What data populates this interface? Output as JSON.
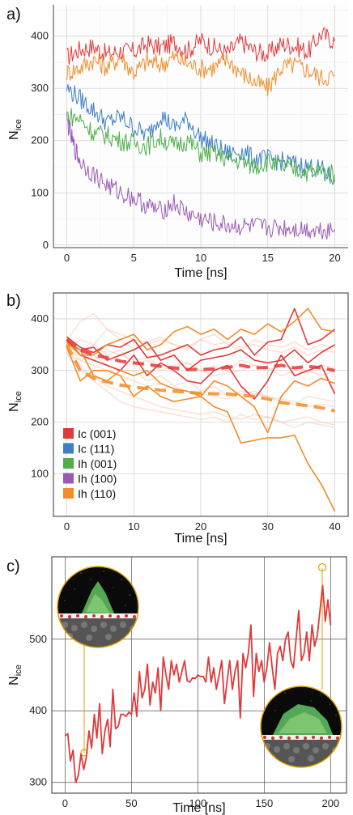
{
  "chart_data": [
    {
      "panel": "a)",
      "type": "line",
      "xlabel": "Time [ns]",
      "ylabel": "N",
      "ylabel_sub": "ice",
      "xlim": [
        -1,
        21
      ],
      "ylim": [
        -5,
        460
      ],
      "xticks": [
        0,
        5,
        10,
        15,
        20
      ],
      "yticks": [
        0,
        100,
        200,
        300,
        400
      ],
      "grid": true,
      "series": [
        {
          "color": "#e03a3a",
          "x": [
            0,
            1,
            2,
            3,
            4,
            5,
            6,
            7,
            8,
            9,
            10,
            11,
            12,
            13,
            14,
            15,
            16,
            17,
            18,
            19,
            20
          ],
          "values": [
            360,
            375,
            380,
            365,
            372,
            370,
            385,
            378,
            388,
            372,
            392,
            378,
            368,
            390,
            372,
            365,
            385,
            382,
            370,
            405,
            390
          ]
        },
        {
          "color": "#f28c28",
          "x": [
            0,
            1,
            2,
            3,
            4,
            5,
            6,
            7,
            8,
            9,
            10,
            11,
            12,
            13,
            14,
            15,
            16,
            17,
            18,
            19,
            20
          ],
          "values": [
            330,
            340,
            355,
            340,
            360,
            330,
            352,
            345,
            360,
            348,
            338,
            340,
            355,
            330,
            312,
            300,
            340,
            345,
            335,
            320,
            325
          ]
        },
        {
          "color": "#3d7fc4",
          "x": [
            0,
            1,
            2,
            3,
            4,
            5,
            6,
            7,
            8,
            9,
            10,
            11,
            12,
            13,
            14,
            15,
            16,
            17,
            18,
            19,
            20
          ],
          "values": [
            300,
            280,
            258,
            235,
            245,
            225,
            210,
            250,
            225,
            240,
            205,
            190,
            175,
            180,
            165,
            165,
            160,
            155,
            150,
            145,
            125
          ]
        },
        {
          "color": "#4fae4a",
          "x": [
            0,
            1,
            2,
            3,
            4,
            5,
            6,
            7,
            8,
            9,
            10,
            11,
            12,
            13,
            14,
            15,
            16,
            17,
            18,
            19,
            20
          ],
          "values": [
            250,
            240,
            215,
            210,
            200,
            195,
            190,
            205,
            190,
            200,
            175,
            175,
            165,
            160,
            150,
            160,
            150,
            145,
            140,
            140,
            135
          ]
        },
        {
          "color": "#9b59b6",
          "x": [
            0,
            0.5,
            1,
            2,
            3,
            4,
            5,
            6,
            7,
            8,
            9,
            10,
            11,
            12,
            13,
            14,
            15,
            16,
            17,
            18,
            19,
            20
          ],
          "values": [
            240,
            190,
            160,
            135,
            115,
            100,
            90,
            75,
            65,
            80,
            60,
            50,
            42,
            38,
            35,
            35,
            32,
            33,
            32,
            30,
            30,
            30
          ]
        }
      ]
    },
    {
      "panel": "b)",
      "type": "line",
      "xlabel": "Time [ns]",
      "ylabel": "N",
      "ylabel_sub": "ice",
      "xlim": [
        -2,
        42
      ],
      "ylim": [
        18,
        450
      ],
      "xticks": [
        0,
        10,
        20,
        30,
        40
      ],
      "yticks": [
        100,
        200,
        300,
        400
      ],
      "grid": true,
      "legend": {
        "position": "bottom-left",
        "items": [
          {
            "label": "Ic (001)",
            "color": "#e03a3a"
          },
          {
            "label": "Ic (111)",
            "color": "#3d7fc4"
          },
          {
            "label": "Ih (001)",
            "color": "#4fae4a"
          },
          {
            "label": "Ih (100)",
            "color": "#9b59b6"
          },
          {
            "label": "Ih (110)",
            "color": "#f28c28"
          }
        ]
      },
      "x": [
        0,
        2,
        4,
        6,
        8,
        10,
        12,
        14,
        16,
        18,
        20,
        22,
        24,
        26,
        28,
        30,
        32,
        34,
        36,
        38,
        40
      ],
      "series": [
        {
          "color": "#e03a3a",
          "style": "mean",
          "values": [
            360,
            340,
            330,
            325,
            318,
            315,
            312,
            308,
            305,
            302,
            302,
            303,
            306,
            310,
            305,
            306,
            310,
            305,
            308,
            305,
            300
          ]
        },
        {
          "color": "#f28c28",
          "style": "mean",
          "values": [
            350,
            300,
            285,
            278,
            272,
            268,
            265,
            262,
            260,
            258,
            256,
            255,
            255,
            252,
            250,
            245,
            238,
            235,
            232,
            228,
            222
          ]
        },
        {
          "color": "#e03a3a",
          "style": "solid",
          "values": [
            365,
            345,
            335,
            350,
            345,
            360,
            325,
            330,
            340,
            350,
            330,
            340,
            345,
            365,
            330,
            355,
            360,
            420,
            350,
            360,
            380
          ]
        },
        {
          "color": "#e03a3a",
          "style": "solid",
          "values": [
            360,
            330,
            320,
            310,
            300,
            330,
            290,
            315,
            300,
            280,
            275,
            300,
            310,
            270,
            245,
            280,
            330,
            290,
            300,
            310,
            255
          ]
        },
        {
          "color": "#e03a3a",
          "style": "solid",
          "values": [
            355,
            340,
            345,
            320,
            330,
            340,
            355,
            320,
            330,
            300,
            320,
            325,
            330,
            340,
            320,
            315,
            320,
            340,
            315,
            335,
            350
          ]
        },
        {
          "color": "#f28c28",
          "style": "solid",
          "values": [
            350,
            340,
            290,
            280,
            300,
            290,
            300,
            275,
            265,
            260,
            250,
            280,
            270,
            250,
            230,
            180,
            250,
            280,
            270,
            285,
            275
          ]
        },
        {
          "color": "#f28c28",
          "style": "solid",
          "values": [
            345,
            280,
            300,
            300,
            290,
            250,
            270,
            250,
            240,
            245,
            250,
            230,
            220,
            160,
            165,
            170,
            170,
            175,
            120,
            80,
            28
          ]
        },
        {
          "color": "#f28c28",
          "style": "solid",
          "values": [
            355,
            330,
            330,
            350,
            360,
            370,
            340,
            350,
            375,
            385,
            370,
            380,
            360,
            380,
            370,
            390,
            375,
            395,
            420,
            380,
            375
          ]
        },
        {
          "color": "#f9c2ad",
          "style": "faint",
          "values": [
            340,
            330,
            350,
            330,
            340,
            310,
            320,
            300,
            310,
            315,
            300,
            290,
            295,
            300,
            310,
            305,
            290,
            300,
            295,
            310,
            305
          ]
        },
        {
          "color": "#f9c2ad",
          "style": "faint",
          "values": [
            330,
            320,
            310,
            300,
            290,
            280,
            270,
            275,
            265,
            260,
            255,
            250,
            245,
            255,
            260,
            250,
            240,
            235,
            250,
            245,
            240
          ]
        },
        {
          "color": "#f9c2ad",
          "style": "faint",
          "values": [
            345,
            360,
            350,
            380,
            360,
            340,
            350,
            360,
            350,
            340,
            360,
            370,
            350,
            340,
            360,
            350,
            345,
            355,
            340,
            350,
            345
          ]
        },
        {
          "color": "#f9c2ad",
          "style": "faint",
          "values": [
            335,
            300,
            290,
            270,
            260,
            250,
            240,
            230,
            225,
            220,
            215,
            220,
            210,
            205,
            215,
            210,
            200,
            205,
            210,
            200,
            195
          ]
        },
        {
          "color": "#f9c2ad",
          "style": "faint",
          "values": [
            350,
            320,
            330,
            310,
            300,
            300,
            280,
            290,
            270,
            280,
            260,
            270,
            250,
            260,
            255,
            250,
            245,
            240,
            230,
            235,
            230
          ]
        },
        {
          "color": "#f9c2ad",
          "style": "faint",
          "values": [
            358,
            395,
            410,
            380,
            370,
            360,
            355,
            365,
            350,
            345,
            360,
            350,
            355,
            345,
            350,
            340,
            335,
            345,
            330,
            340,
            335
          ]
        },
        {
          "color": "#f9c2ad",
          "style": "faint",
          "values": [
            340,
            310,
            280,
            260,
            240,
            230,
            225,
            220,
            215,
            210,
            205,
            210,
            200,
            215,
            205,
            210,
            200,
            190,
            200,
            195,
            190
          ]
        },
        {
          "color": "#f9c2ad",
          "style": "faint",
          "values": [
            352,
            330,
            320,
            340,
            330,
            320,
            325,
            310,
            305,
            315,
            300,
            310,
            300,
            320,
            310,
            300,
            310,
            305,
            300,
            290,
            300
          ]
        }
      ]
    },
    {
      "panel": "c)",
      "type": "line",
      "xlabel": "Time [ns]",
      "ylabel": "N",
      "ylabel_sub": "ice",
      "xlim": [
        -10,
        212
      ],
      "ylim": [
        285,
        615
      ],
      "xticks": [
        0,
        50,
        100,
        150,
        200
      ],
      "yticks": [
        300,
        400,
        500
      ],
      "grid": true,
      "series": [
        {
          "color": "#e03a3a",
          "x": [
            0,
            2,
            4,
            6,
            8,
            10,
            12,
            14,
            16,
            18,
            20,
            22,
            24,
            26,
            28,
            30,
            32,
            34,
            36,
            38,
            40,
            42,
            44,
            46,
            48,
            50,
            52,
            54,
            56,
            58,
            60,
            62,
            64,
            66,
            68,
            70,
            72,
            74,
            76,
            78,
            80,
            82,
            84,
            86,
            88,
            90,
            92,
            94,
            96,
            98,
            100,
            102,
            104,
            106,
            108,
            110,
            112,
            114,
            116,
            118,
            120,
            122,
            124,
            126,
            128,
            130,
            132,
            134,
            136,
            138,
            140,
            142,
            144,
            146,
            148,
            150,
            152,
            154,
            156,
            158,
            160,
            162,
            164,
            166,
            168,
            170,
            172,
            174,
            176,
            178,
            180,
            182,
            184,
            186,
            188,
            190,
            192,
            194,
            196,
            198,
            200
          ],
          "values": [
            365,
            368,
            330,
            345,
            300,
            310,
            340,
            318,
            335,
            372,
            348,
            395,
            362,
            410,
            340,
            372,
            388,
            350,
            430,
            375,
            378,
            395,
            395,
            392,
            398,
            395,
            425,
            392,
            455,
            418,
            430,
            465,
            408,
            440,
            425,
            460,
            400,
            475,
            450,
            430,
            470,
            450,
            465,
            440,
            455,
            470,
            442,
            440,
            446,
            445,
            450,
            448,
            448,
            440,
            475,
            440,
            460,
            430,
            450,
            470,
            410,
            440,
            470,
            430,
            455,
            470,
            390,
            480,
            460,
            480,
            520,
            420,
            480,
            455,
            470,
            440,
            460,
            495,
            460,
            430,
            480,
            490,
            470,
            500,
            510,
            470,
            460,
            500,
            540,
            470,
            480,
            510,
            470,
            520,
            490,
            505,
            540,
            575,
            525,
            555,
            520
          ]
        }
      ]
    }
  ]
}
